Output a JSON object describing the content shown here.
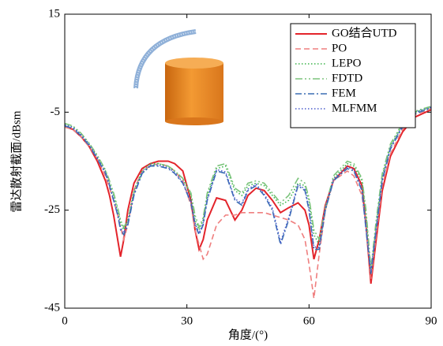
{
  "chart_data": {
    "type": "line",
    "xlabel": "角度/(°)",
    "ylabel": "雷达散射截面/dBsm",
    "xlim": [
      0,
      90
    ],
    "xticks": [
      0,
      30,
      60,
      90
    ],
    "ylim": [
      -45,
      15
    ],
    "yticks": [
      15,
      -5,
      -25,
      -45
    ],
    "legend": "upper right",
    "x": [
      0,
      2,
      4,
      6,
      8,
      10,
      11,
      12,
      13,
      13.7,
      14.5,
      15.5,
      17,
      19,
      21,
      23,
      25.4,
      27,
      29,
      31,
      32,
      33,
      34,
      35,
      37.3,
      39.5,
      41.8,
      43.5,
      45,
      47,
      49,
      51,
      53,
      55,
      57.3,
      59,
      60,
      61.2,
      62.5,
      64,
      66,
      69.4,
      71,
      73,
      74,
      75.2,
      76.5,
      78,
      80,
      83,
      86,
      90
    ],
    "series": [
      {
        "name": "GO结合UTD",
        "color": "#e3242b",
        "style": "solid",
        "values": [
          -8,
          -8.5,
          -10,
          -12,
          -15,
          -19,
          -22,
          -26,
          -31,
          -34.5,
          -31,
          -25,
          -19.5,
          -16.5,
          -15.5,
          -15,
          -15,
          -15.5,
          -17,
          -23,
          -29,
          -33,
          -31,
          -27,
          -22.5,
          -23,
          -27,
          -25,
          -22,
          -20.5,
          -21,
          -23,
          -25.5,
          -24.5,
          -23.5,
          -25,
          -28,
          -35,
          -31,
          -24,
          -19,
          -16,
          -16.5,
          -20,
          -28,
          -40,
          -31,
          -21,
          -14,
          -9,
          -6,
          -4.5
        ]
      },
      {
        "name": "PO",
        "color": "#ef7f7f",
        "style": "dashed",
        "values": [
          -8,
          -8.5,
          -10,
          -12,
          -14.5,
          -18,
          -20.5,
          -23,
          -26,
          -28.5,
          -31,
          -28,
          -21,
          -17,
          -16,
          -15.5,
          -16,
          -17,
          -19,
          -24,
          -29,
          -32,
          -35,
          -34,
          -28,
          -26,
          -26,
          -25.5,
          -25.5,
          -25.5,
          -25.5,
          -26,
          -26.5,
          -27,
          -28,
          -31,
          -36,
          -43,
          -34,
          -25,
          -19,
          -17,
          -18,
          -22,
          -28,
          -39,
          -30,
          -20,
          -13.5,
          -8.5,
          -5.5,
          -4.3
        ]
      },
      {
        "name": "LEPO",
        "color": "#3cb44b",
        "style": "dotted",
        "values": [
          -7.5,
          -8,
          -9.5,
          -11.5,
          -14,
          -17,
          -19.5,
          -22,
          -25,
          -27.5,
          -29,
          -27,
          -21,
          -17,
          -15.5,
          -15.5,
          -16,
          -17,
          -18.5,
          -22,
          -27,
          -29,
          -27,
          -22,
          -16.5,
          -16,
          -21,
          -22,
          -20,
          -19.5,
          -20,
          -22,
          -24,
          -23,
          -19.5,
          -20,
          -23,
          -30,
          -32,
          -25,
          -18.5,
          -15.5,
          -16,
          -19,
          -26,
          -38,
          -28,
          -18,
          -12,
          -7.5,
          -5,
          -4
        ]
      },
      {
        "name": "FDTD",
        "color": "#7cc47c",
        "style": "dashdotdot",
        "values": [
          -7.3,
          -7.8,
          -9.3,
          -11.3,
          -13.8,
          -16.8,
          -19,
          -21.5,
          -24.5,
          -27,
          -28.5,
          -27,
          -21.5,
          -17.5,
          -16,
          -15.5,
          -16,
          -17,
          -18.5,
          -21.5,
          -26,
          -28.5,
          -26.5,
          -21.5,
          -16,
          -15.5,
          -20.5,
          -21.5,
          -19.5,
          -19,
          -19.5,
          -21.5,
          -23.5,
          -22,
          -18.5,
          -19.5,
          -22.5,
          -29,
          -31,
          -24.5,
          -18,
          -15,
          -15.5,
          -18.5,
          -25,
          -37,
          -27,
          -17.5,
          -11.5,
          -7.2,
          -4.8,
          -3.8
        ]
      },
      {
        "name": "FEM",
        "color": "#3a6db3",
        "style": "dashdot",
        "values": [
          -7.8,
          -8.3,
          -9.8,
          -11.8,
          -14.5,
          -17.5,
          -20,
          -23,
          -26,
          -29,
          -30,
          -28,
          -22,
          -17.5,
          -16,
          -16,
          -16.5,
          -17.5,
          -19.5,
          -23.5,
          -28,
          -30,
          -28,
          -23,
          -17,
          -17.5,
          -23,
          -24,
          -21,
          -20,
          -22,
          -25,
          -32,
          -27,
          -20,
          -21,
          -25,
          -33,
          -33,
          -25,
          -19,
          -16.5,
          -17,
          -21,
          -29,
          -38,
          -29,
          -19,
          -12.5,
          -8,
          -5.3,
          -4.2
        ]
      },
      {
        "name": "MLFMM",
        "color": "#4a5ccc",
        "style": "dotted",
        "values": [
          -7.6,
          -8.1,
          -9.6,
          -11.6,
          -14.3,
          -17.3,
          -19.8,
          -22.8,
          -25.8,
          -28.6,
          -29.6,
          -27.6,
          -21.7,
          -17.3,
          -15.8,
          -15.8,
          -16.3,
          -17.3,
          -19.3,
          -23.2,
          -27.6,
          -29.7,
          -27.6,
          -22.7,
          -16.7,
          -17.2,
          -22.7,
          -23.6,
          -20.7,
          -19.7,
          -21.7,
          -24.6,
          -31.5,
          -26.6,
          -19.7,
          -20.7,
          -24.6,
          -32.5,
          -32.6,
          -24.6,
          -18.7,
          -16.2,
          -16.7,
          -20.7,
          -28.6,
          -37.5,
          -28.6,
          -18.6,
          -12.2,
          -7.7,
          -5,
          -4
        ]
      }
    ]
  }
}
